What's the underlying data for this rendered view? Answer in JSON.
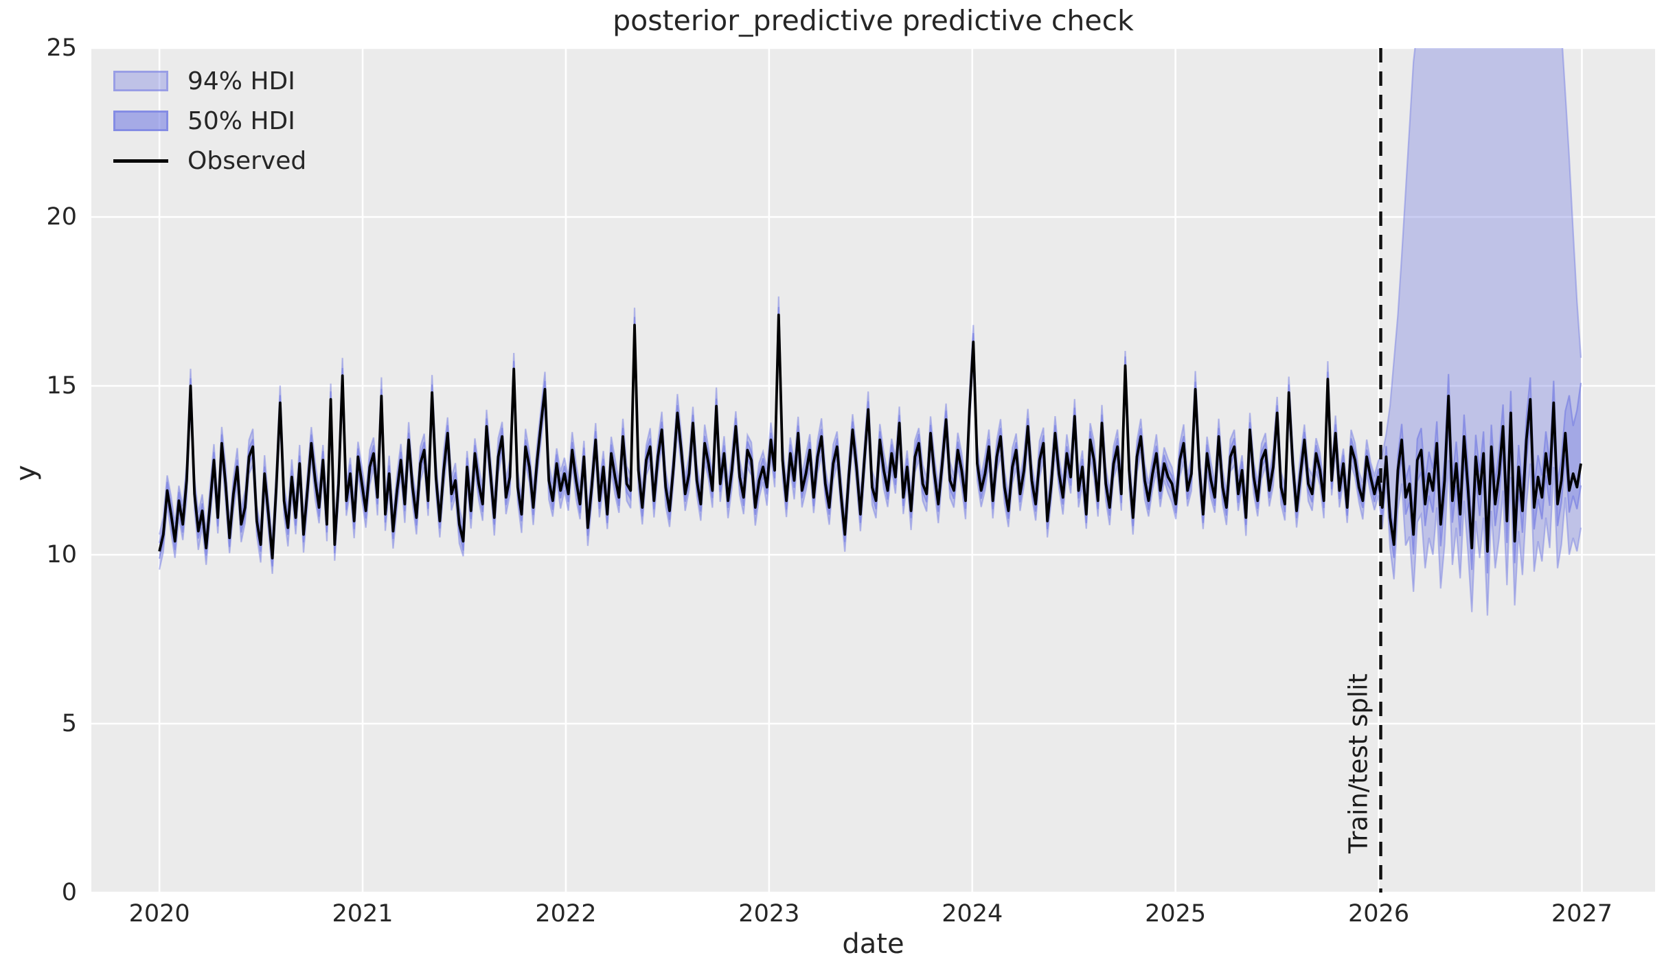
{
  "chart_data": {
    "type": "line",
    "title": "posterior_predictive predictive check",
    "xlabel": "date",
    "ylabel": "y",
    "legend": [
      "94% HDI",
      "50% HDI",
      "Observed"
    ],
    "legend_position": "upper left",
    "grid": true,
    "xlim": [
      2019.665,
      2027.36
    ],
    "ylim": [
      0,
      25
    ],
    "x_ticks": [
      2020,
      2021,
      2022,
      2023,
      2024,
      2025,
      2026,
      2027
    ],
    "x_tick_labels": [
      "2020",
      "2021",
      "2022",
      "2023",
      "2024",
      "2025",
      "2026",
      "2027"
    ],
    "y_ticks": [
      0,
      5,
      10,
      15,
      20,
      25
    ],
    "y_tick_labels": [
      "0",
      "5",
      "10",
      "15",
      "20",
      "25"
    ],
    "split": {
      "year": 2026.01,
      "label": "Train/test split"
    },
    "colors": {
      "band": "#7a82e3",
      "band_alpha_94": 0.38,
      "band_alpha_50": 0.62,
      "band_edge_alpha_94": 0.5,
      "band_edge_alpha_50": 0.7,
      "observed": "#000000",
      "axes_bg": "#ebebeb",
      "grid": "#ffffff",
      "split_line": "#111111",
      "text": "#262626"
    },
    "series_name": "Observed",
    "x_start_year": 2020.0,
    "points_per_year": 52.18,
    "observed": [
      10.1,
      10.6,
      11.9,
      11.2,
      10.4,
      11.6,
      10.9,
      12.2,
      15.0,
      11.8,
      10.7,
      11.3,
      10.2,
      11.5,
      12.8,
      11.1,
      13.3,
      12.1,
      10.5,
      11.8,
      12.6,
      10.9,
      11.4,
      12.9,
      13.2,
      11.0,
      10.3,
      12.4,
      11.2,
      9.9,
      12.0,
      14.5,
      11.6,
      10.8,
      12.3,
      11.1,
      12.7,
      10.6,
      11.9,
      13.3,
      12.2,
      11.4,
      12.8,
      10.9,
      14.6,
      10.3,
      12.1,
      15.3,
      11.6,
      12.4,
      11.0,
      12.9,
      12.1,
      11.3,
      12.6,
      13.0,
      11.7,
      14.7,
      11.2,
      12.4,
      10.7,
      11.9,
      12.8,
      11.5,
      13.4,
      12.0,
      11.1,
      12.7,
      13.1,
      11.6,
      14.8,
      12.3,
      11.0,
      12.5,
      13.6,
      11.8,
      12.2,
      10.9,
      10.4,
      12.6,
      11.3,
      13.0,
      12.1,
      11.5,
      13.8,
      12.4,
      11.1,
      12.9,
      13.5,
      11.7,
      12.3,
      15.5,
      12.0,
      11.2,
      13.2,
      12.6,
      11.4,
      12.8,
      13.9,
      14.9,
      12.2,
      11.6,
      12.7,
      11.9,
      12.4,
      11.8,
      13.1,
      12.2,
      11.5,
      12.9,
      10.8,
      12.0,
      13.4,
      11.6,
      12.6,
      11.2,
      13.0,
      12.3,
      11.7,
      13.5,
      12.1,
      11.9,
      16.8,
      12.5,
      11.4,
      12.8,
      13.2,
      11.6,
      12.9,
      13.7,
      12.0,
      11.3,
      12.6,
      14.2,
      13.1,
      11.8,
      12.4,
      13.9,
      12.2,
      11.5,
      13.3,
      12.7,
      11.9,
      14.4,
      12.1,
      13.0,
      11.6,
      12.5,
      13.8,
      12.3,
      11.7,
      13.1,
      12.8,
      11.4,
      12.2,
      12.6,
      12.0,
      13.4,
      12.5,
      17.1,
      12.8,
      11.6,
      13.0,
      12.2,
      13.6,
      11.9,
      12.4,
      13.1,
      11.7,
      12.9,
      13.5,
      12.1,
      11.4,
      12.7,
      13.2,
      11.8,
      10.6,
      12.3,
      13.7,
      12.6,
      11.2,
      12.8,
      14.3,
      12.0,
      11.6,
      13.4,
      12.5,
      11.9,
      13.0,
      12.3,
      13.9,
      11.7,
      12.6,
      11.3,
      12.9,
      13.3,
      12.1,
      11.8,
      13.6,
      12.4,
      11.5,
      12.7,
      14.0,
      12.2,
      11.9,
      13.1,
      12.5,
      11.6,
      14.3,
      16.3,
      12.7,
      11.9,
      12.4,
      13.2,
      11.6,
      12.9,
      13.5,
      12.0,
      11.3,
      12.6,
      13.1,
      11.8,
      12.5,
      13.8,
      12.2,
      11.5,
      12.8,
      13.3,
      11.0,
      12.1,
      13.6,
      12.4,
      11.7,
      13.0,
      12.3,
      14.1,
      11.9,
      12.6,
      11.2,
      13.4,
      12.8,
      11.6,
      13.9,
      12.1,
      11.4,
      12.7,
      13.2,
      11.8,
      15.6,
      12.5,
      11.1,
      12.9,
      13.5,
      12.2,
      11.6,
      12.4,
      13.0,
      11.9,
      12.7,
      12.3,
      12.1,
      11.5,
      12.8,
      13.3,
      11.9,
      12.4,
      14.9,
      12.6,
      11.2,
      13.0,
      12.2,
      11.7,
      13.5,
      12.0,
      11.4,
      12.9,
      13.2,
      11.8,
      12.5,
      11.1,
      13.7,
      12.3,
      11.6,
      12.8,
      13.1,
      11.9,
      12.6,
      14.2,
      12.0,
      11.5,
      14.8,
      12.7,
      11.3,
      12.4,
      13.4,
      12.1,
      11.8,
      13.0,
      12.5,
      11.6,
      15.2,
      12.2,
      13.6,
      11.9,
      12.7,
      11.4,
      13.2,
      12.8,
      12.0,
      11.6,
      12.9,
      12.3,
      11.8,
      12.3,
      11.4,
      12.9,
      11.1,
      10.3,
      12.5,
      13.4,
      11.7,
      12.1,
      10.6,
      12.8,
      13.1,
      11.5,
      12.4,
      11.9,
      13.3,
      10.9,
      12.2,
      14.7,
      11.6,
      12.7,
      11.2,
      13.5,
      12.0,
      10.2,
      12.9,
      11.8,
      13.0,
      10.1,
      13.2,
      11.5,
      12.4,
      13.8,
      11.0,
      14.2,
      10.4,
      12.6,
      11.3,
      13.4,
      14.6,
      11.4,
      12.3,
      11.7,
      13.0,
      12.1,
      14.5,
      11.5,
      12.2,
      13.6,
      11.9,
      12.4,
      12.0,
      12.7
    ],
    "bands": {
      "train": {
        "hdi94_halfwidth": 0.5,
        "hdi50_halfwidth": 0.24,
        "width_wobble": 0.14
      },
      "forecast": {
        "ramp_years": 0.2,
        "hdi94_lower_offset": 1.9,
        "hdi50_halfwidth": 0.65,
        "hdi94_upper_keypoints": [
          [
            2026.0,
            12.4
          ],
          [
            2026.05,
            14.0
          ],
          [
            2026.1,
            17.5
          ],
          [
            2026.14,
            21.5
          ],
          [
            2026.18,
            25.5
          ],
          [
            2026.32,
            27.0
          ],
          [
            2026.55,
            27.6
          ],
          [
            2026.8,
            27.0
          ],
          [
            2026.9,
            25.5
          ],
          [
            2026.94,
            21.5
          ],
          [
            2026.97,
            18.0
          ],
          [
            2027.0,
            15.4
          ]
        ],
        "hdi50_upper_spike_keypoints": [
          [
            2026.9,
            12.0
          ],
          [
            2026.94,
            14.9
          ],
          [
            2026.96,
            13.6
          ],
          [
            2027.0,
            15.3
          ]
        ]
      }
    }
  }
}
